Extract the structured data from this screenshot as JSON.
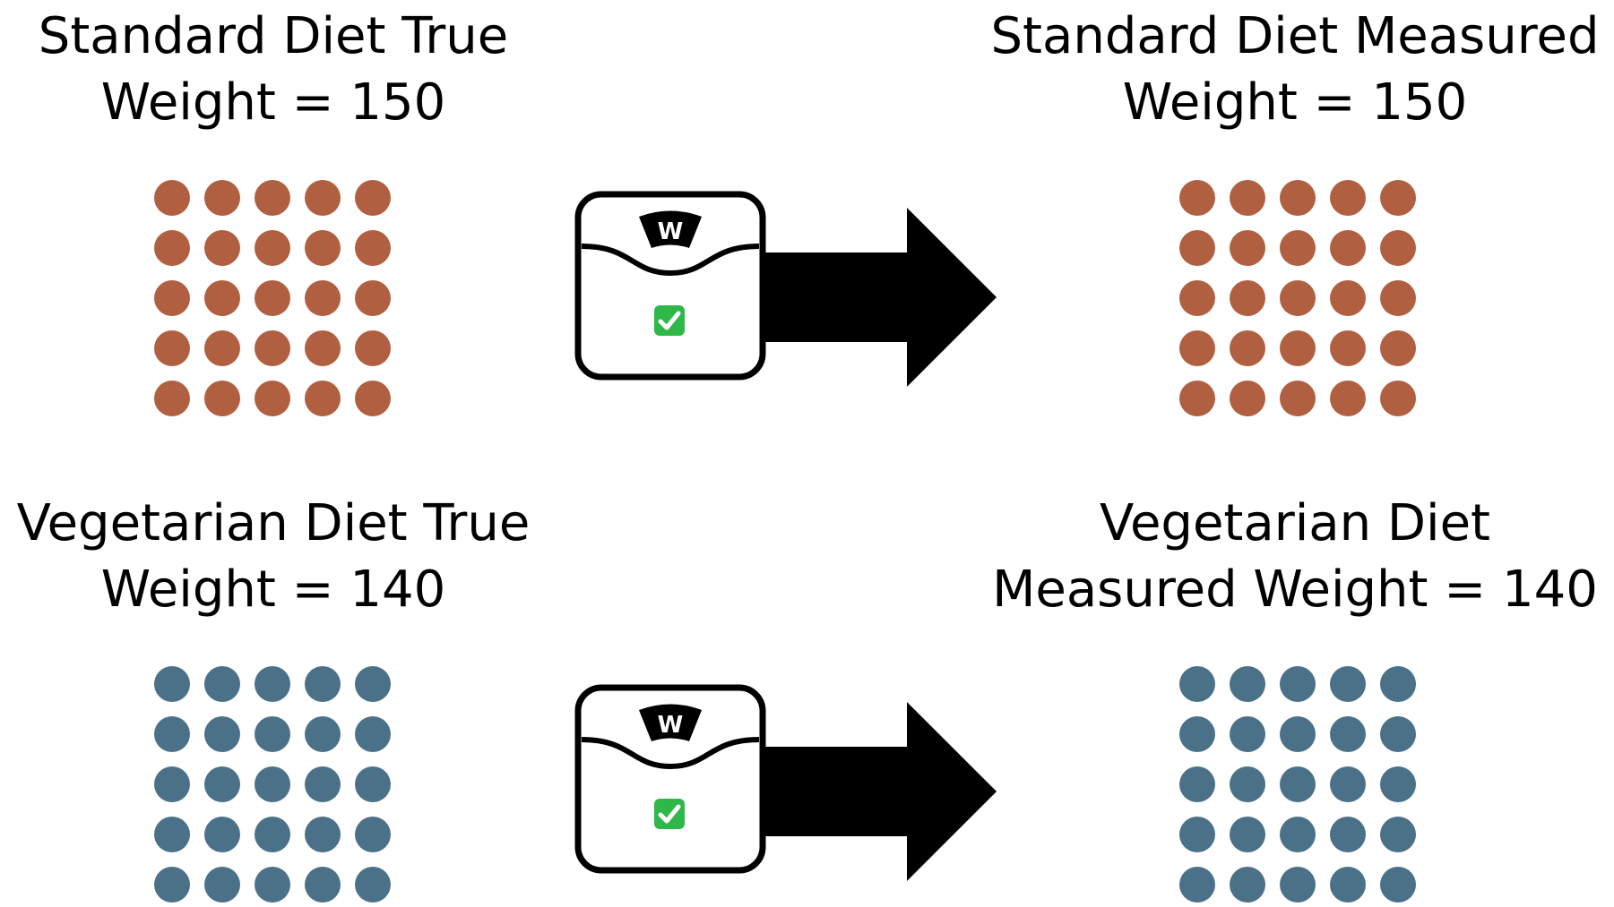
{
  "panels": {
    "standard_true": {
      "line1": "Standard Diet True",
      "line2": "Weight  = 150"
    },
    "standard_measured": {
      "line1": "Standard Diet Measured",
      "line2": "Weight  = 150"
    },
    "vegetarian_true": {
      "line1": "Vegetarian Diet True",
      "line2": "Weight  = 140"
    },
    "vegetarian_measured": {
      "line1": "Vegetarian Diet",
      "line2": "Measured Weight  = 140"
    }
  },
  "dot_grid": {
    "rows": 5,
    "cols": 5
  },
  "colors": {
    "standard_dots": "#b06040",
    "vegetarian_dots": "#4b7189",
    "arrow": "#000000",
    "check_bg": "#2fb84a"
  },
  "icons": {
    "scale": "bathroom-scale-icon",
    "check": "check-mark-icon",
    "arrow": "right-arrow-icon"
  }
}
